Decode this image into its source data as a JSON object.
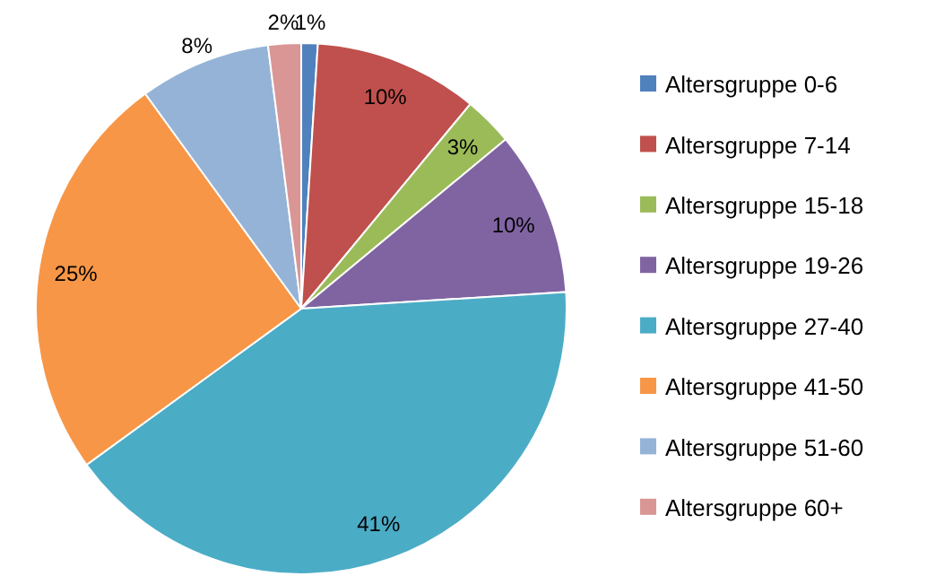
{
  "chart_data": {
    "type": "pie",
    "categories": [
      "Altersgruppe 0-6",
      "Altersgruppe 7-14",
      "Altersgruppe 15-18",
      "Altersgruppe 19-26",
      "Altersgruppe 27-40",
      "Altersgruppe 41-50",
      "Altersgruppe 51-60",
      "Altersgruppe 60+"
    ],
    "values": [
      1,
      10,
      3,
      10,
      41,
      25,
      8,
      2
    ],
    "colors": [
      "#4f81bd",
      "#c0504d",
      "#9bbb59",
      "#8064a2",
      "#4bacc6",
      "#f79646",
      "#95b3d7",
      "#d99694"
    ],
    "value_labels": [
      "1%",
      "10%",
      "3%",
      "10%",
      "41%",
      "25%",
      "8%",
      "2%"
    ],
    "legend": "right"
  }
}
